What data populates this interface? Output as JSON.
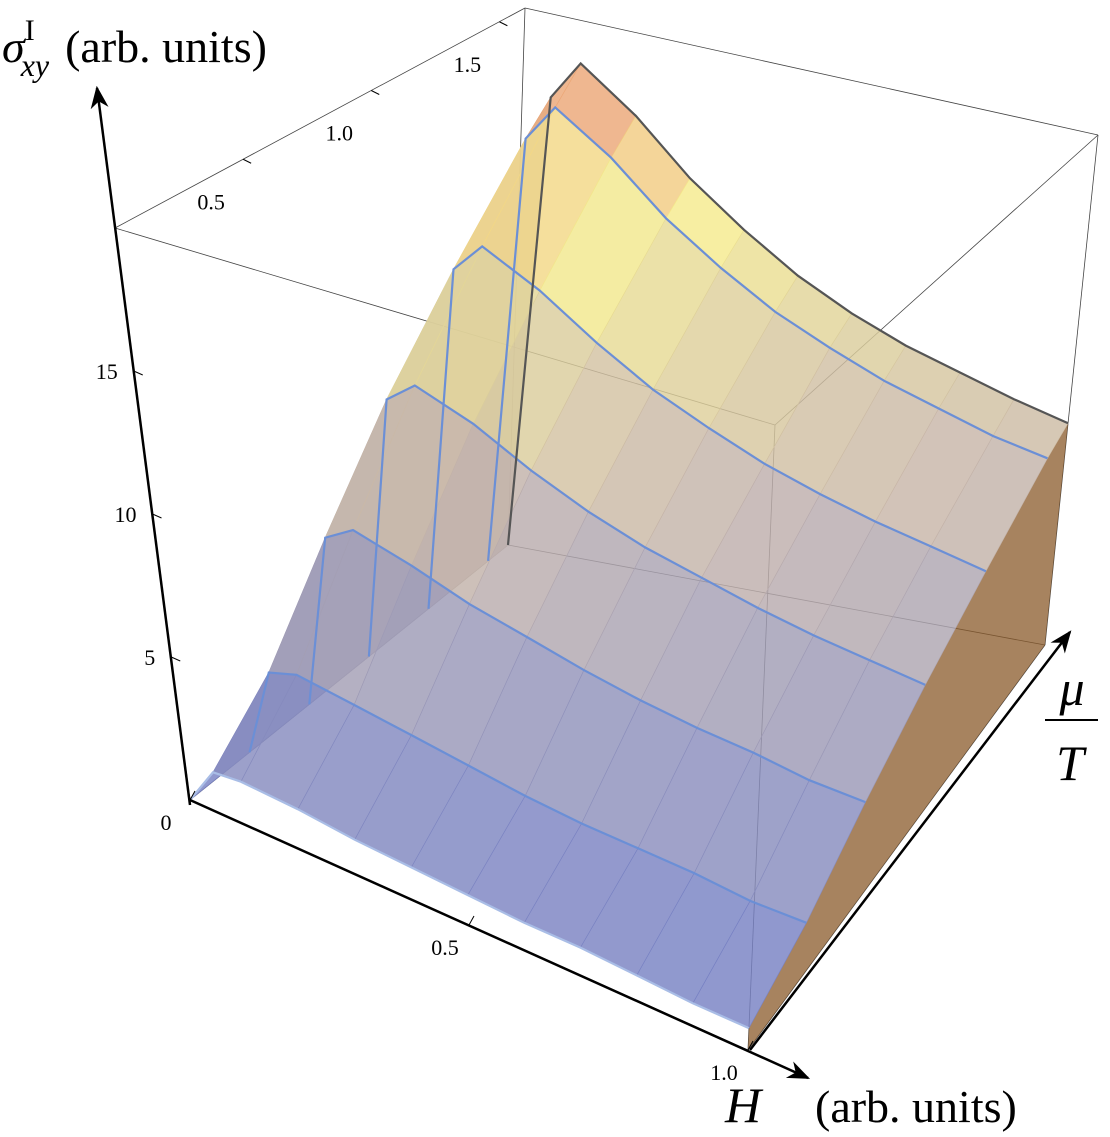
{
  "chart_data": {
    "type": "surface3d",
    "zlabel": {
      "symbol": "σ",
      "sub": "xy",
      "sup": "I",
      "units": "(arb. units)"
    },
    "xlabel": {
      "symbol": "H",
      "units": "(arb. units)"
    },
    "ylabel": {
      "numerator": "μ",
      "denominator": "T"
    },
    "x": [
      0,
      0.05,
      0.1,
      0.2,
      0.3,
      0.4,
      0.5,
      0.6,
      0.7,
      0.8,
      0.9,
      1.0
    ],
    "series": [
      {
        "mu": 0,
        "color": "#a9bde6",
        "values": [
          0,
          1.4,
          1.5,
          1.4,
          1.2,
          1.1,
          1.0,
          0.9,
          0.9,
          0.8,
          0.7,
          0.7
        ]
      },
      {
        "mu": 0.3,
        "color": "#6b8fd6",
        "values": [
          0,
          3.2,
          3.5,
          3.2,
          2.9,
          2.6,
          2.3,
          2.1,
          2.0,
          1.9,
          1.7,
          1.7
        ]
      },
      {
        "mu": 0.6,
        "color": "#6b8fd6",
        "values": [
          0,
          6.3,
          6.9,
          6.3,
          5.6,
          5.1,
          4.6,
          4.2,
          3.9,
          3.7,
          3.4,
          3.3
        ]
      },
      {
        "mu": 0.9,
        "color": "#6b8fd6",
        "values": [
          0,
          9.6,
          10.4,
          9.6,
          8.5,
          7.6,
          6.9,
          6.4,
          5.9,
          5.5,
          5.2,
          4.9
        ]
      },
      {
        "mu": 1.2,
        "color": "#6b8fd6",
        "values": [
          0,
          12.7,
          13.8,
          12.7,
          11.3,
          10.1,
          9.2,
          8.4,
          7.8,
          7.3,
          6.9,
          6.5
        ]
      },
      {
        "mu": 1.5,
        "color": "#6b8fd6",
        "values": [
          0,
          15.9,
          17.3,
          15.9,
          14.1,
          12.7,
          11.5,
          10.6,
          9.8,
          9.2,
          8.6,
          8.2
        ]
      },
      {
        "mu": 1.6,
        "color": "#555555",
        "values": [
          0,
          16.9,
          18.4,
          16.9,
          15.0,
          13.5,
          12.2,
          11.2,
          10.4,
          9.8,
          9.2,
          8.7
        ]
      }
    ],
    "xlim": [
      0,
      1
    ],
    "ylim": [
      0,
      1.6
    ],
    "zlim": [
      0,
      20
    ],
    "xticks": [
      0,
      0.5,
      {
        "value": 1,
        "label": "1.0"
      }
    ],
    "yticks": [
      0.5,
      {
        "value": 1,
        "label": "1.0"
      },
      1.5
    ],
    "zticks": [
      5,
      10,
      15
    ],
    "curtain_color": "#8a5a2a"
  }
}
